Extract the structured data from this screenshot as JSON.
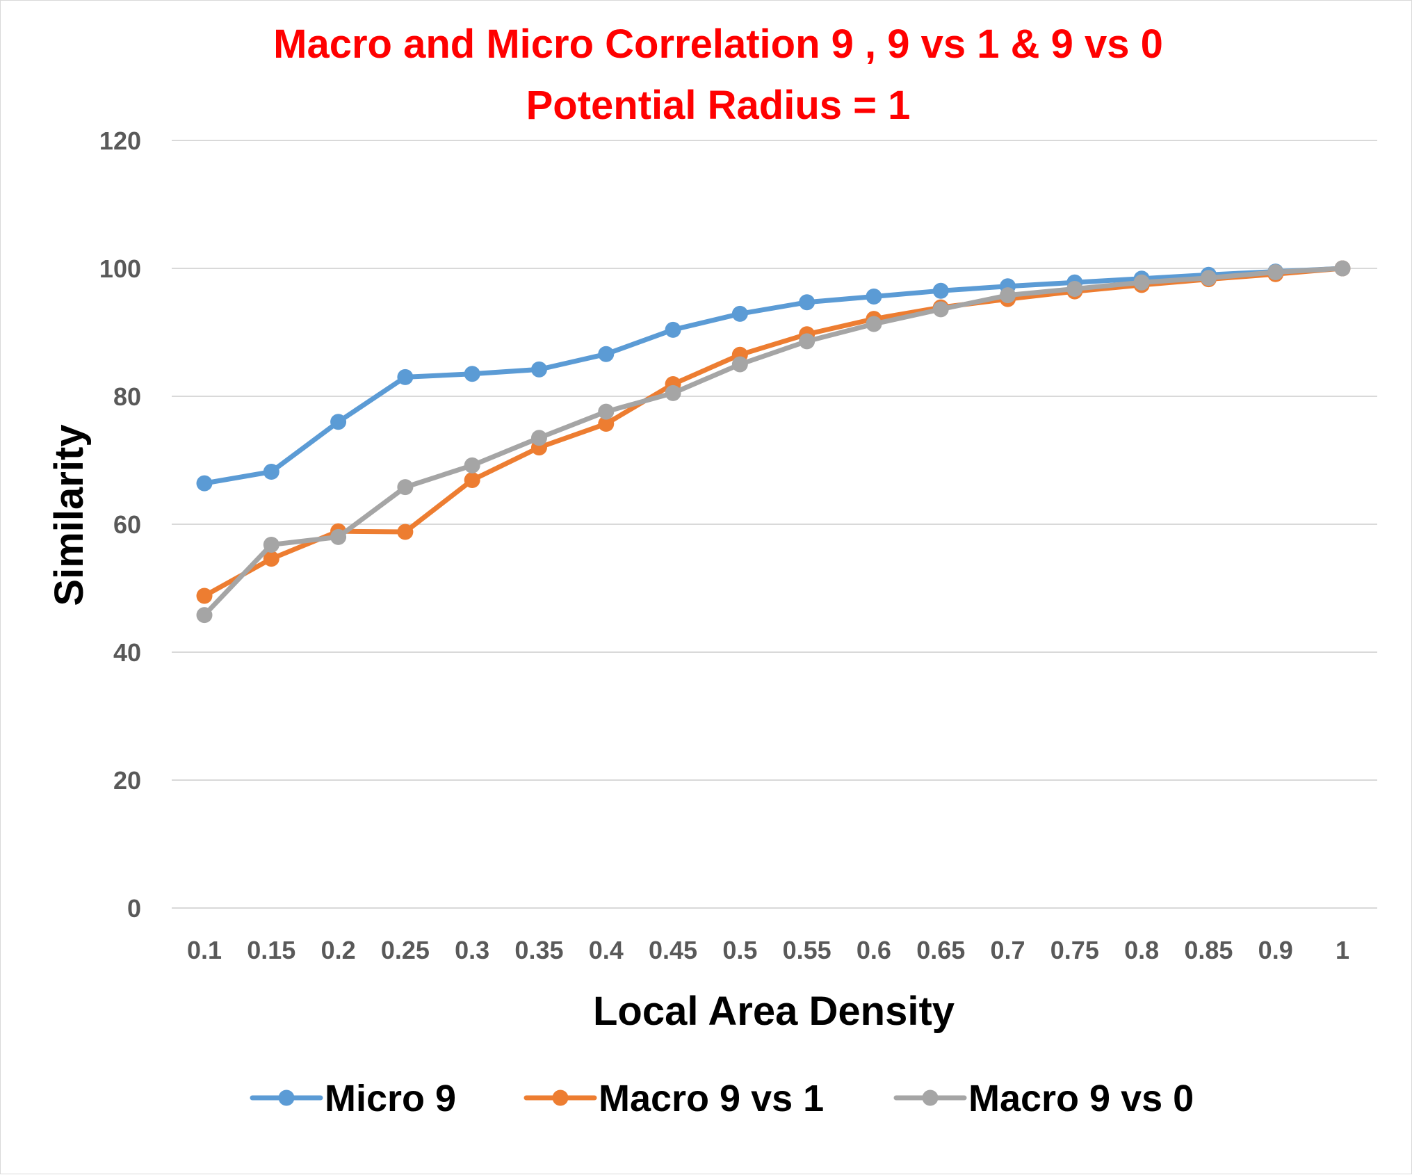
{
  "chart_data": {
    "type": "line",
    "title": [
      "Macro and Micro Correlation 9 , 9 vs 1 & 9 vs 0",
      "Potential Radius = 1"
    ],
    "xlabel": "Local Area Density",
    "ylabel": "Similarity",
    "categories": [
      "0.1",
      "0.15",
      "0.2",
      "0.25",
      "0.3",
      "0.35",
      "0.4",
      "0.45",
      "0.5",
      "0.55",
      "0.6",
      "0.65",
      "0.7",
      "0.75",
      "0.8",
      "0.85",
      "0.9",
      "1"
    ],
    "ylim": [
      0,
      120
    ],
    "yticks": [
      "0",
      "20",
      "40",
      "60",
      "80",
      "100",
      "120"
    ],
    "grid": true,
    "legend_position": "bottom",
    "series": [
      {
        "name": "Micro 9",
        "color": "#5b9bd5",
        "values": [
          66.4,
          68.2,
          76.0,
          83.0,
          83.5,
          84.2,
          86.6,
          90.4,
          92.9,
          94.7,
          95.6,
          96.5,
          97.2,
          97.8,
          98.4,
          99.0,
          99.5,
          100.0
        ]
      },
      {
        "name": "Macro 9 vs 1",
        "color": "#ed7d31",
        "values": [
          48.8,
          54.6,
          58.9,
          58.8,
          66.9,
          72.0,
          75.7,
          81.9,
          86.5,
          89.7,
          92.1,
          93.9,
          95.2,
          96.4,
          97.4,
          98.3,
          99.1,
          100.0
        ]
      },
      {
        "name": "Macro 9 vs 0",
        "color": "#a5a5a5",
        "values": [
          45.8,
          56.8,
          58.0,
          65.8,
          69.2,
          73.5,
          77.6,
          80.5,
          85.0,
          88.6,
          91.3,
          93.6,
          95.8,
          96.8,
          97.8,
          98.5,
          99.4,
          100.0
        ]
      }
    ]
  }
}
